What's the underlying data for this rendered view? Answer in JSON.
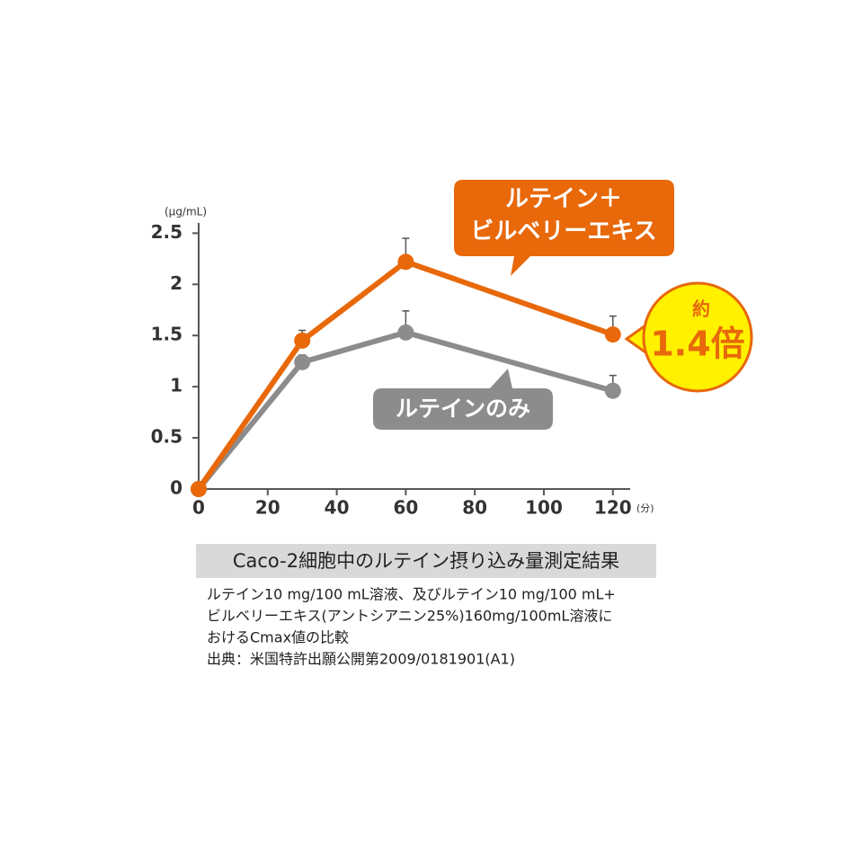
{
  "chart_data": {
    "type": "line",
    "x": [
      0,
      30,
      60,
      120
    ],
    "series": [
      {
        "name": [
          "ルテイン＋",
          "ビルベリーエキス"
        ],
        "color": "#e8680a",
        "values": [
          0,
          1.45,
          2.22,
          1.51
        ],
        "errors": [
          0,
          0.1,
          0.23,
          0.18
        ]
      },
      {
        "name": "ルテインのみ",
        "color": "#8c8c8c",
        "values": [
          0,
          1.24,
          1.53,
          0.96
        ],
        "errors": [
          0,
          0.07,
          0.21,
          0.15
        ]
      }
    ],
    "xlim": [
      0,
      125
    ],
    "xticks": [
      0,
      20,
      40,
      60,
      80,
      100,
      120
    ],
    "ylim": [
      0,
      2.6
    ],
    "yticks": [
      0,
      0.5,
      1,
      1.5,
      2,
      2.5
    ],
    "y_unit": "(μg/mL)",
    "x_unit": "(分)",
    "badge": {
      "top": "約",
      "value": "1.4倍"
    },
    "caption_title": "Caco-2細胞中のルテイン摂り込み量測定結果",
    "notes": [
      "ルテイン10 mg/100 mL溶液、及びルテイン10 mg/100 mL+",
      "ビルベリーエキス(アントシアニン25%)160mg/100mL溶液に",
      "おけるCmax値の比較",
      "出典：米国特許出願公開第2009/0181901(A1)"
    ]
  }
}
